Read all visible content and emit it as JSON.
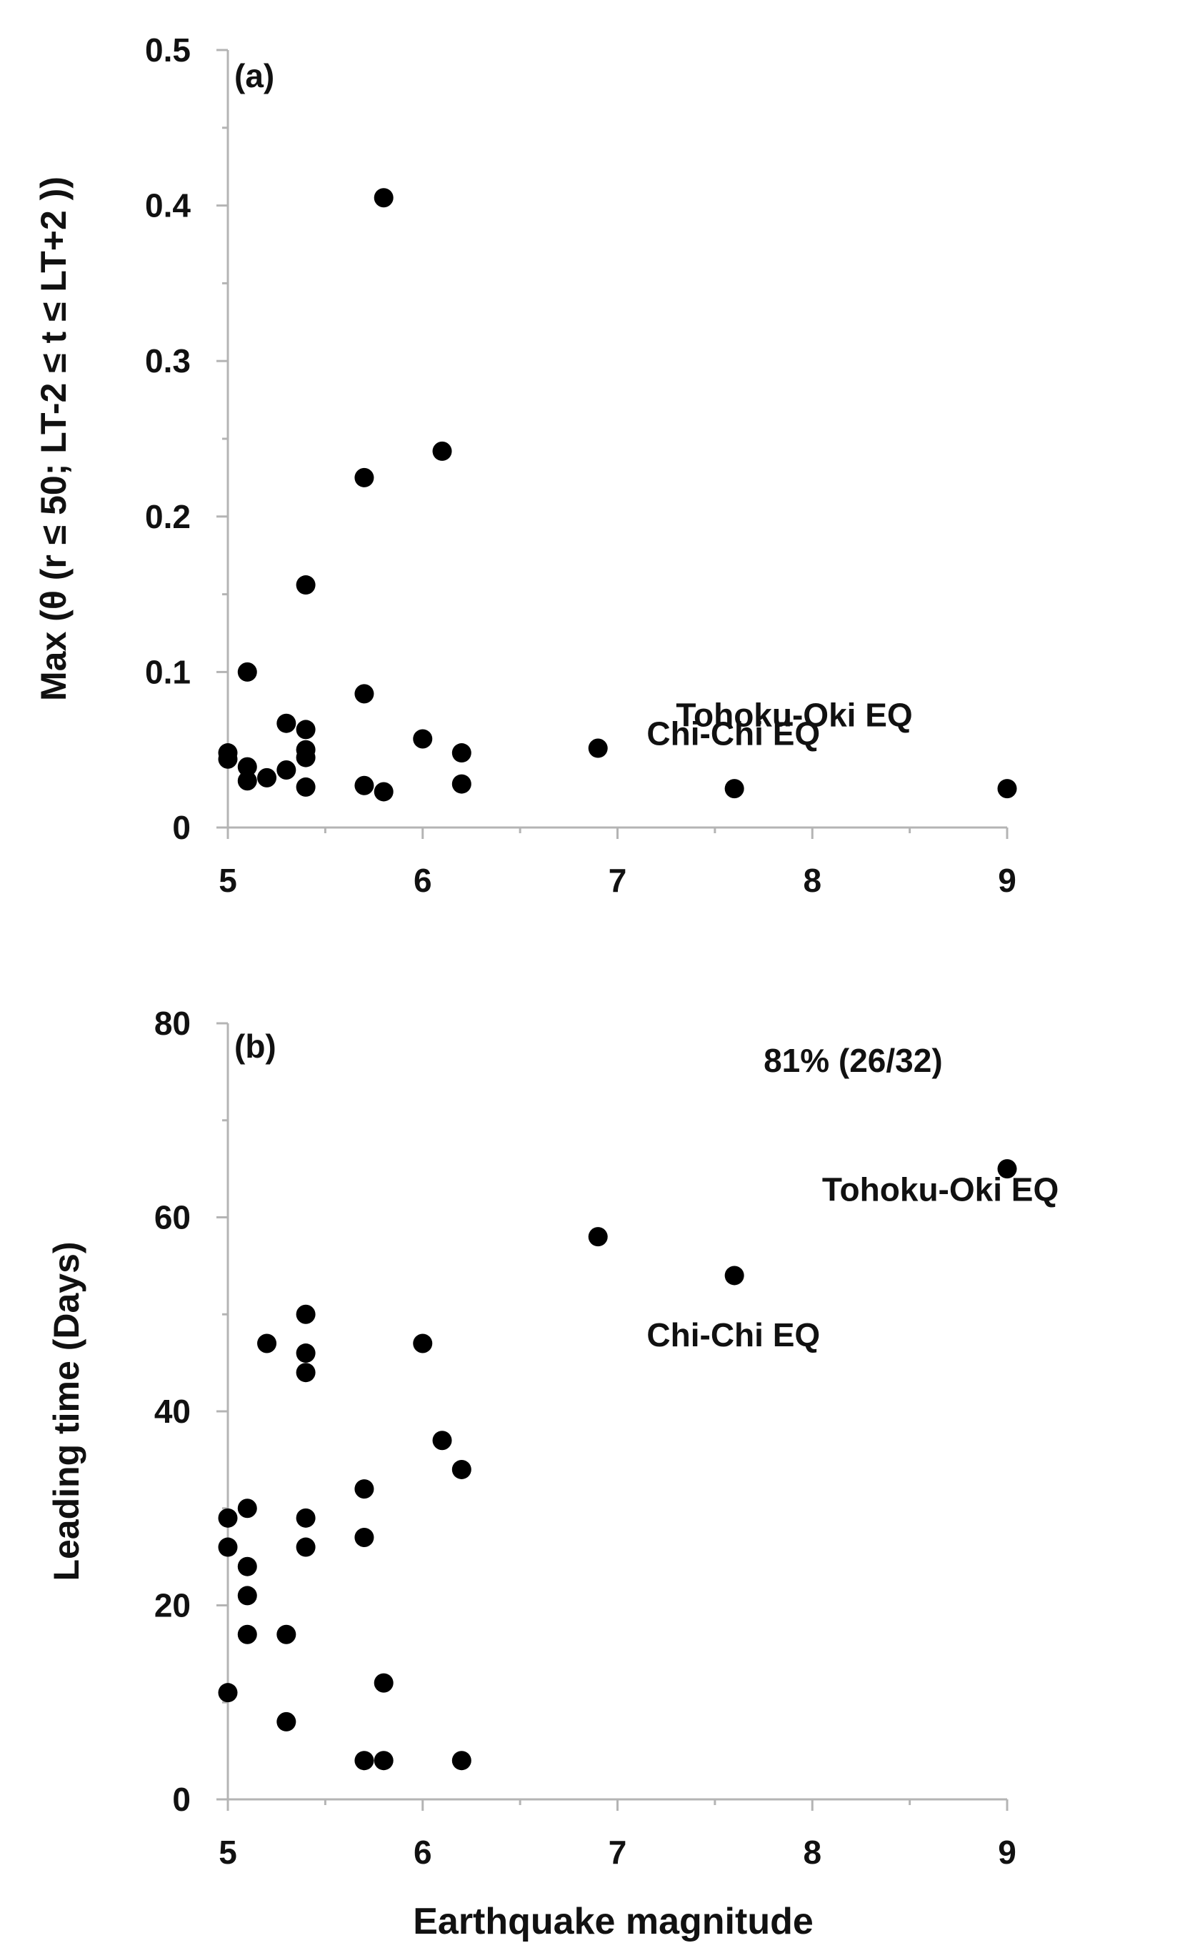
{
  "colors": {
    "axis": "#b4b4b4",
    "marker": "#000000",
    "text": "#111111"
  },
  "chart_data": [
    {
      "type": "scatter",
      "panel_label": "(a)",
      "xlabel": "",
      "ylabel": "Max (θ (r ≤ 50; LT-2 ≤ t ≤ LT+2 ))",
      "xlim": [
        5,
        9
      ],
      "ylim": [
        0,
        0.5
      ],
      "xticks": [
        5,
        6,
        7,
        8,
        9
      ],
      "yticks": [
        0,
        0.1,
        0.2,
        0.3,
        0.4,
        0.5
      ],
      "ytick_labels": [
        "0",
        "0.1",
        "0.2",
        "0.3",
        "0.4",
        "0.5"
      ],
      "grid": false,
      "annotations": [
        {
          "text": "Chi-Chi EQ",
          "x": 7.15,
          "y": 0.053
        },
        {
          "text": "Tohoku-Oki EQ",
          "x": 7.3,
          "y": 0.065
        }
      ],
      "points": [
        {
          "x": 5.0,
          "y": 0.048
        },
        {
          "x": 5.0,
          "y": 0.044
        },
        {
          "x": 5.1,
          "y": 0.1
        },
        {
          "x": 5.1,
          "y": 0.039
        },
        {
          "x": 5.1,
          "y": 0.03
        },
        {
          "x": 5.2,
          "y": 0.032
        },
        {
          "x": 5.3,
          "y": 0.067
        },
        {
          "x": 5.3,
          "y": 0.037
        },
        {
          "x": 5.4,
          "y": 0.156
        },
        {
          "x": 5.4,
          "y": 0.063
        },
        {
          "x": 5.4,
          "y": 0.05
        },
        {
          "x": 5.4,
          "y": 0.045
        },
        {
          "x": 5.4,
          "y": 0.026
        },
        {
          "x": 5.7,
          "y": 0.225
        },
        {
          "x": 5.7,
          "y": 0.086
        },
        {
          "x": 5.7,
          "y": 0.027
        },
        {
          "x": 5.8,
          "y": 0.405
        },
        {
          "x": 5.8,
          "y": 0.023
        },
        {
          "x": 6.0,
          "y": 0.057
        },
        {
          "x": 6.1,
          "y": 0.242
        },
        {
          "x": 6.2,
          "y": 0.048
        },
        {
          "x": 6.2,
          "y": 0.028
        },
        {
          "x": 6.9,
          "y": 0.051
        },
        {
          "x": 7.6,
          "y": 0.025
        },
        {
          "x": 9.0,
          "y": 0.025
        }
      ]
    },
    {
      "type": "scatter",
      "panel_label": "(b)",
      "xlabel": "Earthquake magnitude",
      "ylabel": "Leading time (Days)",
      "xlim": [
        5,
        9
      ],
      "ylim": [
        0,
        80
      ],
      "xticks": [
        5,
        6,
        7,
        8,
        9
      ],
      "yticks": [
        0,
        20,
        40,
        60,
        80
      ],
      "ytick_labels": [
        "0",
        "20",
        "40",
        "60",
        "80"
      ],
      "grid": false,
      "annotations": [
        {
          "text": "81% (26/32)",
          "x": 7.75,
          "y": 75
        },
        {
          "text": "Tohoku-Oki EQ",
          "x": 8.05,
          "y": 61.7
        },
        {
          "text": "Chi-Chi EQ",
          "x": 7.15,
          "y": 46.7
        }
      ],
      "points": [
        {
          "x": 5.0,
          "y": 29
        },
        {
          "x": 5.0,
          "y": 26
        },
        {
          "x": 5.0,
          "y": 11
        },
        {
          "x": 5.1,
          "y": 30
        },
        {
          "x": 5.1,
          "y": 24
        },
        {
          "x": 5.1,
          "y": 21
        },
        {
          "x": 5.1,
          "y": 17
        },
        {
          "x": 5.2,
          "y": 47
        },
        {
          "x": 5.3,
          "y": 17
        },
        {
          "x": 5.3,
          "y": 8
        },
        {
          "x": 5.4,
          "y": 50
        },
        {
          "x": 5.4,
          "y": 46
        },
        {
          "x": 5.4,
          "y": 44
        },
        {
          "x": 5.4,
          "y": 29
        },
        {
          "x": 5.4,
          "y": 26
        },
        {
          "x": 5.7,
          "y": 32
        },
        {
          "x": 5.7,
          "y": 27
        },
        {
          "x": 5.7,
          "y": 4
        },
        {
          "x": 5.8,
          "y": 12
        },
        {
          "x": 5.8,
          "y": 4
        },
        {
          "x": 6.0,
          "y": 47
        },
        {
          "x": 6.1,
          "y": 37
        },
        {
          "x": 6.2,
          "y": 34
        },
        {
          "x": 6.2,
          "y": 4
        },
        {
          "x": 6.9,
          "y": 58
        },
        {
          "x": 7.6,
          "y": 54
        },
        {
          "x": 9.0,
          "y": 65
        }
      ]
    }
  ]
}
